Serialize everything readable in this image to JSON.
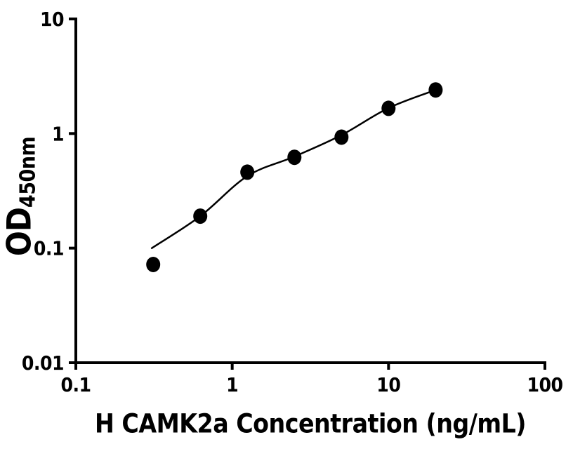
{
  "figure": {
    "background_color": "#ffffff",
    "ink_color": "#000000"
  },
  "chart_data": {
    "type": "scatter",
    "title": "",
    "xlabel": "H CAMK2a Concentration (ng/mL)",
    "ylabel_main": "OD",
    "ylabel_subscript": "450nm",
    "x_scale": "log",
    "y_scale": "log",
    "xlim": [
      0.1,
      100
    ],
    "ylim": [
      0.01,
      10
    ],
    "x_ticks": {
      "values": [
        0.1,
        1,
        10,
        100
      ],
      "labels": [
        "0.1",
        "1",
        "10",
        "100"
      ]
    },
    "y_ticks": {
      "values": [
        0.01,
        0.1,
        1,
        10
      ],
      "labels": [
        "0.01",
        "0.1",
        "1",
        "10"
      ]
    },
    "grid": false,
    "legend": false,
    "series": [
      {
        "name": "standard-data-points",
        "type": "scatter",
        "marker": "filled-circle",
        "color": "#000000",
        "x": [
          0.3125,
          0.625,
          1.25,
          2.5,
          5,
          10,
          20
        ],
        "y": [
          0.072,
          0.19,
          0.46,
          0.62,
          0.93,
          1.66,
          2.4
        ]
      },
      {
        "name": "fitted-standard-curve",
        "type": "line",
        "color": "#000000",
        "x": [
          0.306,
          0.625,
          1.25,
          2.5,
          5,
          10,
          20
        ],
        "y": [
          0.1,
          0.19,
          0.425,
          0.63,
          0.97,
          1.67,
          2.4
        ]
      }
    ]
  }
}
